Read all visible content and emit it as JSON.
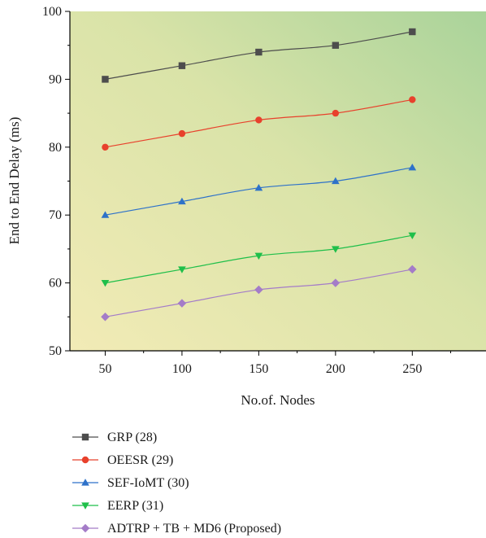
{
  "chart_data": {
    "type": "line",
    "xlabel": "No.of. Nodes",
    "ylabel": "End to End Delay (ms)",
    "x": [
      50,
      100,
      150,
      200,
      250
    ],
    "xlim": [
      27,
      298
    ],
    "ylim": [
      50,
      100
    ],
    "xticks": [
      50,
      100,
      150,
      200,
      250
    ],
    "yticks": [
      50,
      60,
      70,
      80,
      90,
      100
    ],
    "grid": false,
    "background": "gradient yellow-green",
    "legend_position": "below",
    "series": [
      {
        "name": "GRP (28)",
        "values": [
          90,
          92,
          94,
          95,
          97
        ],
        "color": "#4d4d4d",
        "marker": "square"
      },
      {
        "name": "OEESR (29)",
        "values": [
          80,
          82,
          84,
          85,
          87
        ],
        "color": "#e8412c",
        "marker": "circle"
      },
      {
        "name": "SEF-IoMT (30)",
        "values": [
          70,
          72,
          74,
          75,
          77
        ],
        "color": "#2e72c9",
        "marker": "triangle-up"
      },
      {
        "name": "EERP (31)",
        "values": [
          60,
          62,
          64,
          65,
          67
        ],
        "color": "#1fbf4a",
        "marker": "triangle-down"
      },
      {
        "name": "ADTRP + TB + MD6 (Proposed)",
        "values": [
          55,
          57,
          59,
          60,
          62
        ],
        "color": "#a47cc8",
        "marker": "diamond"
      }
    ]
  }
}
